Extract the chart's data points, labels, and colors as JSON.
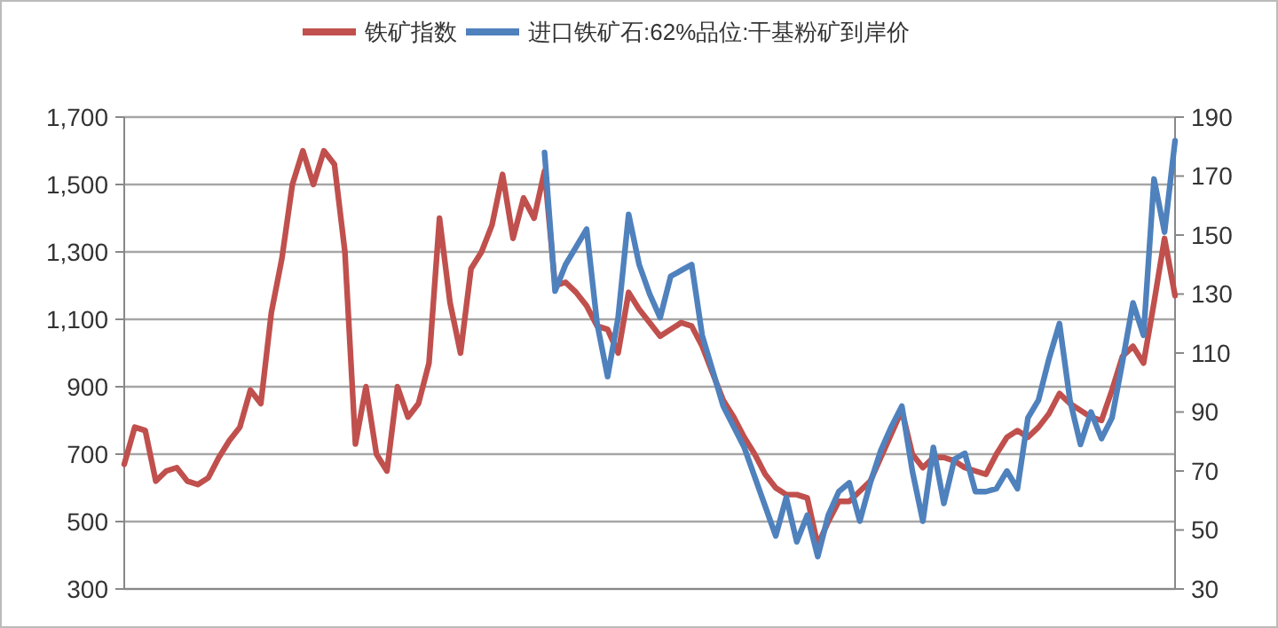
{
  "chart_data": {
    "type": "line",
    "legend": "top",
    "grid": "y",
    "categories": [
      null,
      null,
      null,
      null,
      null,
      null,
      null,
      null,
      null,
      null,
      null,
      null,
      null,
      null,
      null,
      null,
      null,
      null,
      null,
      null,
      null,
      null,
      null,
      null,
      null,
      null,
      null,
      null,
      null,
      null,
      null,
      null,
      null,
      null,
      null,
      null,
      null,
      null,
      null,
      null,
      null,
      null,
      null,
      null,
      null,
      null,
      null,
      null,
      null,
      null,
      null,
      null,
      null,
      null,
      null,
      null,
      null,
      null,
      null,
      null,
      null,
      null,
      null,
      null,
      null,
      null,
      null,
      null,
      null,
      null,
      null,
      null,
      null,
      null,
      null,
      null,
      null,
      null,
      null,
      null,
      null,
      null,
      null,
      null,
      null,
      null,
      null,
      null,
      null,
      null,
      null,
      null,
      null,
      null,
      null,
      null,
      null,
      null,
      null,
      null,
      null
    ],
    "ylim": [
      300,
      1700
    ],
    "yticks": [
      {
        "value": 300,
        "label": "300"
      },
      {
        "value": 500,
        "label": "500"
      },
      {
        "value": 700,
        "label": "700"
      },
      {
        "value": 900,
        "label": "900"
      },
      {
        "value": 1100,
        "label": "1,100"
      },
      {
        "value": 1300,
        "label": "1,300"
      },
      {
        "value": 1500,
        "label": "1,500"
      },
      {
        "value": 1700,
        "label": "1,700"
      }
    ],
    "y2lim": [
      30,
      190
    ],
    "y2ticks": [
      30,
      50,
      70,
      90,
      110,
      130,
      150,
      170,
      190
    ],
    "series": [
      {
        "name": "铁矿指数",
        "color": "#c0504d",
        "values": [
          670,
          780,
          770,
          620,
          650,
          660,
          620,
          610,
          630,
          690,
          740,
          780,
          890,
          850,
          1120,
          1280,
          1500,
          1600,
          1500,
          1600,
          1560,
          1300,
          730,
          900,
          700,
          650,
          900,
          810,
          850,
          970,
          1400,
          1150,
          1000,
          1250,
          1300,
          1380,
          1530,
          1340,
          1460,
          1400,
          1540,
          1200,
          1210,
          1180,
          1140,
          1080,
          1070,
          1000,
          1180,
          1130,
          1090,
          1050,
          1070,
          1090,
          1080,
          1020,
          940,
          860,
          810,
          750,
          700,
          640,
          600,
          580,
          580,
          570,
          430,
          500,
          560,
          560,
          590,
          620,
          690,
          760,
          830,
          700,
          660,
          690,
          690,
          680,
          660,
          650,
          640,
          700,
          750,
          770,
          750,
          780,
          820,
          880,
          850,
          830,
          810,
          800,
          890,
          990,
          1020,
          970,
          1150,
          1340,
          1170
        ]
      },
      {
        "name": "进口铁矿石:62%品位:干基粉矿到岸价",
        "color": "#4f81bd",
        "axis": "y2",
        "values": [
          null,
          null,
          null,
          null,
          null,
          null,
          null,
          null,
          null,
          null,
          null,
          null,
          null,
          null,
          null,
          null,
          null,
          null,
          null,
          null,
          null,
          null,
          null,
          null,
          null,
          null,
          null,
          null,
          null,
          null,
          null,
          null,
          null,
          null,
          null,
          null,
          null,
          null,
          null,
          null,
          178,
          131,
          140,
          146,
          152,
          120,
          102,
          122,
          157,
          140,
          130,
          122,
          136,
          138,
          140,
          116,
          104,
          92,
          85,
          78,
          68,
          58,
          48,
          61,
          46,
          55,
          41,
          55,
          63,
          66,
          53,
          66,
          77,
          85,
          92,
          70,
          53,
          78,
          59,
          74,
          76,
          63,
          63,
          64,
          70,
          64,
          88,
          94,
          108,
          120,
          94,
          79,
          90,
          81,
          88,
          107,
          127,
          116,
          169,
          151,
          182
        ]
      }
    ]
  }
}
